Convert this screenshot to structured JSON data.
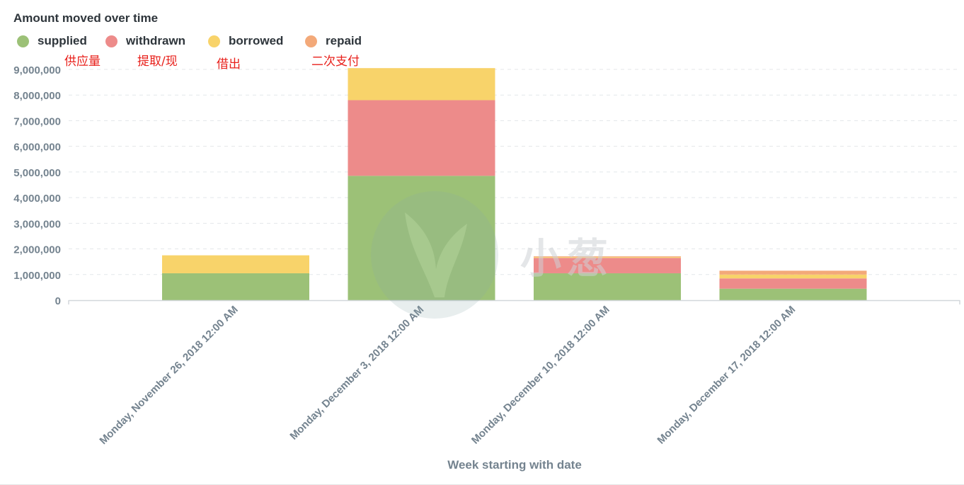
{
  "chart_data": {
    "type": "bar",
    "stacked": true,
    "title": "Amount moved over time",
    "xlabel": "Week starting with date",
    "ylabel": "",
    "ylim": [
      0,
      9000000
    ],
    "yticks": [
      0,
      1000000,
      2000000,
      3000000,
      4000000,
      5000000,
      6000000,
      7000000,
      8000000,
      9000000
    ],
    "ytick_labels": [
      "0",
      "1,000,000",
      "2,000,000",
      "3,000,000",
      "4,000,000",
      "5,000,000",
      "6,000,000",
      "7,000,000",
      "8,000,000",
      "9,000,000"
    ],
    "grid": "horizontal dashed",
    "legend_position": "top-left",
    "categories": [
      "Monday, November 26, 2018 12:00 AM",
      "Monday, December 3, 2018 12:00 AM",
      "Monday, December 10, 2018 12:00 AM",
      "Monday, December 17, 2018 12:00 AM"
    ],
    "series": [
      {
        "name": "supplied",
        "color": "#9cc177",
        "values": [
          1050000,
          4850000,
          1050000,
          450000
        ]
      },
      {
        "name": "withdrawn",
        "color": "#ed8b8a",
        "values": [
          0,
          2950000,
          600000,
          400000
        ]
      },
      {
        "name": "borrowed",
        "color": "#f8d36a",
        "values": [
          700000,
          1250000,
          30000,
          150000
        ]
      },
      {
        "name": "repaid",
        "color": "#f3a979",
        "values": [
          0,
          0,
          30000,
          150000
        ]
      }
    ]
  },
  "annotations": [
    "供应量",
    "提取/现",
    "借出",
    "二次支付"
  ],
  "watermark": {
    "text": "小葱"
  }
}
